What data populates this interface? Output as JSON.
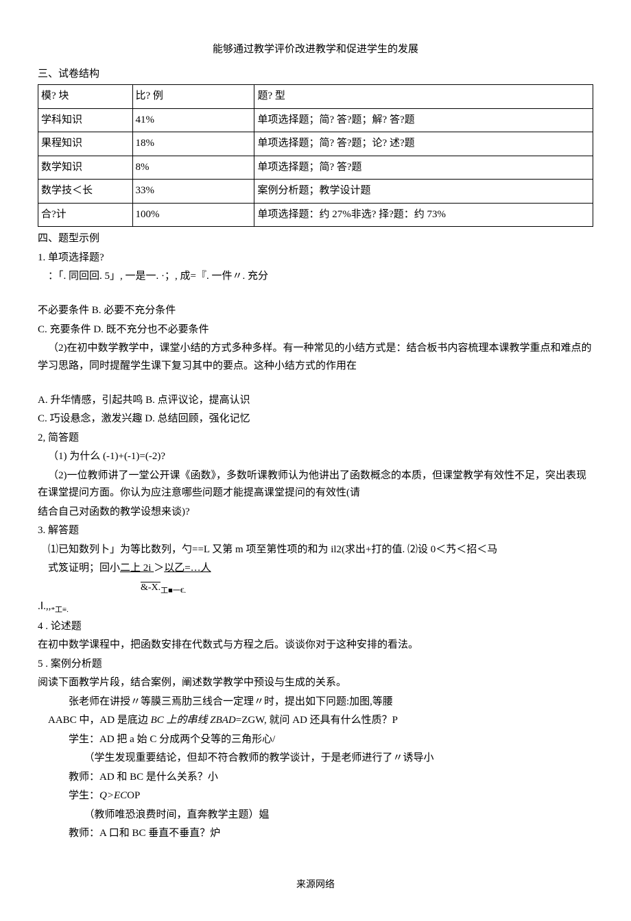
{
  "title": "能够通过教学评价改进教学和促进学生的发展",
  "section3": {
    "heading": "三、试卷结构",
    "table": {
      "headers": [
        "模? 块",
        "比?  例",
        "题?  型"
      ],
      "rows": [
        [
          "学科知识",
          "41%",
          "单项选择题；简?  答?题；解?  答?题"
        ],
        [
          "果程知识",
          "18%",
          "单项选择题；简?  答?题；论?  述?题"
        ],
        [
          "数学知识",
          "8%",
          "单项选择题；简?  答?题"
        ],
        [
          "数学技＜长",
          "33%",
          "案例分析题；教学设计题"
        ],
        [
          "合?计",
          "100%",
          "单项选择题：约 27%非选?  择?题：约 73%"
        ]
      ]
    }
  },
  "section4": {
    "heading": "四、题型示例",
    "q1_heading": "1. 单项选择题?",
    "q1_line1": "：「. 同回回. 5」, 一是一. ·；, 成=『. 一件〃. 充分",
    "q1_b": "不必要条件 B. 必要不充分条件",
    "q1_cd": "C. 充要条件 D. 既不充分也不必要条件",
    "q1_2a": "（2)在初中数学教学中，课堂小结的方式多种多样。有一种常见的小结方式是：结合板书内容梳理本课教学重点和难点的学习思路，同时提醒学生课下复习其中的要点。这种小结方式的作用在",
    "q1_2_ab": "A. 升华情感，引起共鸣 B. 点评议论，提高认识",
    "q1_2_cd": "C. 巧设悬念，激发兴趣 D. 总结回顾，强化记忆",
    "q2_heading": "2, 简答题",
    "q2_1": "（1) 为什么 (-1)+(-1)=(-2)?",
    "q2_2": "（2)一位教师讲了一堂公开课《函数》，多数听课教师认为他讲出了函数概念的本质，但课堂教学有效性不足，突出表现在课堂提问方面。你认为应注意哪些问题才能提高课堂提问的有效性(请",
    "q2_2b": "结合自己对函数的教学设想来谈)?",
    "q3_heading": "3. 解答题",
    "q3_1": "⑴已知数列卜」为等比数列，勺==L 又第 m 项至第性项的和为 il2(求出+打的值. ⑵设 0＜艿＜招＜马",
    "q3_1b_prefix": "式笈证明；回小",
    "q3_1b_u1": "二上   2i  ",
    "q3_1b_mid": "＞",
    "q3_1b_u2": "以乙=…人",
    "frac_top": " ",
    "frac_bottom": "&-X.",
    "frac_tail": "工■一€.",
    "q3_sym": ".Ⅰ.,,",
    "q3_sym2": "*工≡.",
    "q4_heading": "4  . 论述题",
    "q4_text": "在初中数学课程中，把函数安排在代数式与方程之后。谈谈你对于这种安排的看法。",
    "q5_heading": "5  . 案例分析题",
    "q5_text": "阅读下面教学片段，结合案例，阐述数学教学中预设与生成的关系。",
    "d1": "张老师在讲授〃等膜三焉肋三线合一定理〃时，提出如下冋题:加图,等腰",
    "d2_prefix": "AABC 中，AD 是底边 ",
    "d2_italic": "BC 上的串线 ZBAD",
    "d2_suffix": "=ZGW, 就问 AD 还具有什么性质？P",
    "d3": "学生：AD 把 a 始 C 分成两个殳等的三角形心/",
    "d4": "（学生发现重要结论，但却不符合教师的教学谈计，于是老师进行了〃诱导小",
    "d5": "教师：AD 和 BC 是什么关系？小",
    "d6_prefix": "学生：",
    "d6_italic": "Q>EC",
    "d6_suffix": "OP",
    "d7": "（教师唯恐浪费时间，直奔教学主题）媪",
    "d8": "教师：A 口和 BC 垂直不垂直？炉"
  },
  "footer": "来源网络",
  "colors": {
    "text": "#000000",
    "background": "#ffffff",
    "border": "#000000"
  }
}
